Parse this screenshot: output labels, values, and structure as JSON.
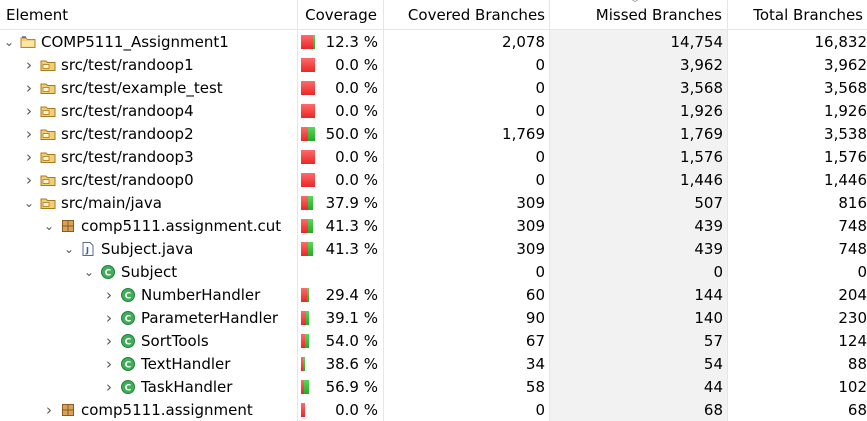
{
  "columns": {
    "element": "Element",
    "coverage": "Coverage",
    "covered": "Covered Branches",
    "missed": "Missed Branches",
    "total": "Total Branches"
  },
  "colors": {
    "missed": "#e82828",
    "covered": "#27a827"
  },
  "rows": [
    {
      "name": "COMP5111_Assignment1",
      "icon": "project-icon",
      "expander": "expanded",
      "coverage": "12.3 %",
      "covered": "2,078",
      "missed": "14,754",
      "total": "16,832",
      "covered_fraction": 0.123
    },
    {
      "name": "src/test/randoop1",
      "icon": "source-folder-icon",
      "expander": "collapsed",
      "coverage": "0.0 %",
      "covered": "0",
      "missed": "3,962",
      "total": "3,962",
      "covered_fraction": 0.0
    },
    {
      "name": "src/test/example_test",
      "icon": "source-folder-icon",
      "expander": "collapsed",
      "coverage": "0.0 %",
      "covered": "0",
      "missed": "3,568",
      "total": "3,568",
      "covered_fraction": 0.0
    },
    {
      "name": "src/test/randoop4",
      "icon": "source-folder-icon",
      "expander": "collapsed",
      "coverage": "0.0 %",
      "covered": "0",
      "missed": "1,926",
      "total": "1,926",
      "covered_fraction": 0.0
    },
    {
      "name": "src/test/randoop2",
      "icon": "source-folder-icon",
      "expander": "collapsed",
      "coverage": "50.0 %",
      "covered": "1,769",
      "missed": "1,769",
      "total": "3,538",
      "covered_fraction": 0.5
    },
    {
      "name": "src/test/randoop3",
      "icon": "source-folder-icon",
      "expander": "collapsed",
      "coverage": "0.0 %",
      "covered": "0",
      "missed": "1,576",
      "total": "1,576",
      "covered_fraction": 0.0
    },
    {
      "name": "src/test/randoop0",
      "icon": "source-folder-icon",
      "expander": "collapsed",
      "coverage": "0.0 %",
      "covered": "0",
      "missed": "1,446",
      "total": "1,446",
      "covered_fraction": 0.0
    },
    {
      "name": "src/main/java",
      "icon": "source-folder-icon",
      "expander": "expanded",
      "coverage": "37.9 %",
      "covered": "309",
      "missed": "507",
      "total": "816",
      "covered_fraction": 0.379
    },
    {
      "name": "comp5111.assignment.cut",
      "icon": "package-icon",
      "expander": "expanded",
      "coverage": "41.3 %",
      "covered": "309",
      "missed": "439",
      "total": "748",
      "covered_fraction": 0.413
    },
    {
      "name": "Subject.java",
      "icon": "java-file-icon",
      "expander": "expanded",
      "coverage": "41.3 %",
      "covered": "309",
      "missed": "439",
      "total": "748",
      "covered_fraction": 0.413
    },
    {
      "name": "Subject",
      "icon": "class-icon",
      "expander": "expanded",
      "coverage": "",
      "covered": "0",
      "missed": "0",
      "total": "0",
      "covered_fraction": null
    },
    {
      "name": "NumberHandler",
      "icon": "class-icon",
      "expander": "collapsed",
      "coverage": "29.4 %",
      "covered": "60",
      "missed": "144",
      "total": "204",
      "covered_fraction": 0.294
    },
    {
      "name": "ParameterHandler",
      "icon": "class-icon",
      "expander": "collapsed",
      "coverage": "39.1 %",
      "covered": "90",
      "missed": "140",
      "total": "230",
      "covered_fraction": 0.391
    },
    {
      "name": "SortTools",
      "icon": "class-icon",
      "expander": "collapsed",
      "coverage": "54.0 %",
      "covered": "67",
      "missed": "57",
      "total": "124",
      "covered_fraction": 0.54
    },
    {
      "name": "TextHandler",
      "icon": "class-icon",
      "expander": "collapsed",
      "coverage": "38.6 %",
      "covered": "34",
      "missed": "54",
      "total": "88",
      "covered_fraction": 0.386
    },
    {
      "name": "TaskHandler",
      "icon": "class-icon",
      "expander": "collapsed",
      "coverage": "56.9 %",
      "covered": "58",
      "missed": "44",
      "total": "102",
      "covered_fraction": 0.569
    },
    {
      "name": "comp5111.assignment",
      "icon": "package-icon",
      "expander": "collapsed",
      "coverage": "0.0 %",
      "covered": "0",
      "missed": "68",
      "total": "68",
      "covered_fraction": 0.0
    }
  ]
}
